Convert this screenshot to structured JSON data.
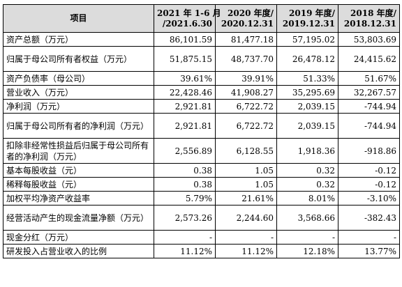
{
  "table": {
    "headers": [
      {
        "line1": "项目",
        "line2": ""
      },
      {
        "line1": "2021 年 1-6 月",
        "line2": "/2021.6.30"
      },
      {
        "line1": "2020 年度/",
        "line2": "2020.12.31"
      },
      {
        "line1": "2019 年度/",
        "line2": "2019.12.31"
      },
      {
        "line1": "2018 年度/",
        "line2": "2018.12.31"
      }
    ],
    "rows": [
      {
        "label": "资产总额（万元）",
        "values": [
          "86,101.59",
          "81,477.18",
          "57,195.02",
          "53,803.69"
        ],
        "lines": 1
      },
      {
        "label": "归属于母公司所有者权益（万元）",
        "values": [
          "51,875.15",
          "48,737.70",
          "26,478.12",
          "24,415.62"
        ],
        "lines": 2
      },
      {
        "label": "资产负债率（母公司）",
        "values": [
          "39.61%",
          "39.91%",
          "51.33%",
          "51.67%"
        ],
        "lines": 1
      },
      {
        "label": "营业收入（万元）",
        "values": [
          "22,428.46",
          "41,908.27",
          "35,295.69",
          "32,267.57"
        ],
        "lines": 1
      },
      {
        "label": "净利润（万元）",
        "values": [
          "2,921.81",
          "6,722.72",
          "2,039.15",
          "-744.94"
        ],
        "lines": 1
      },
      {
        "label": "归属于母公司所有者的净利润（万元）",
        "values": [
          "2,921.81",
          "6,722.72",
          "2,039.15",
          "-744.94"
        ],
        "lines": 2
      },
      {
        "label": "扣除非经常性损益后归属于母公司所有者的净利润（万元）",
        "values": [
          "2,556.89",
          "6,128.55",
          "1,918.36",
          "-918.86"
        ],
        "lines": 2
      },
      {
        "label": "基本每股收益（元）",
        "values": [
          "0.38",
          "1.05",
          "0.32",
          "-0.12"
        ],
        "lines": 1
      },
      {
        "label": "稀释每股收益（元）",
        "values": [
          "0.38",
          "1.05",
          "0.32",
          "-0.12"
        ],
        "lines": 1
      },
      {
        "label": "加权平均净资产收益率",
        "values": [
          "5.79%",
          "21.61%",
          "8.01%",
          "-3.10%"
        ],
        "lines": 1
      },
      {
        "label": "经营活动产生的现金流量净额（万元）",
        "values": [
          "2,573.26",
          "2,244.60",
          "3,568.66",
          "-382.43"
        ],
        "lines": 2
      },
      {
        "label": "现金分红（万元）",
        "values": [
          "-",
          "-",
          "-",
          "-"
        ],
        "lines": 1
      },
      {
        "label": "研发投入占营业收入的比例",
        "values": [
          "11.12%",
          "11.12%",
          "12.18%",
          "13.77%"
        ],
        "lines": 1
      }
    ]
  }
}
